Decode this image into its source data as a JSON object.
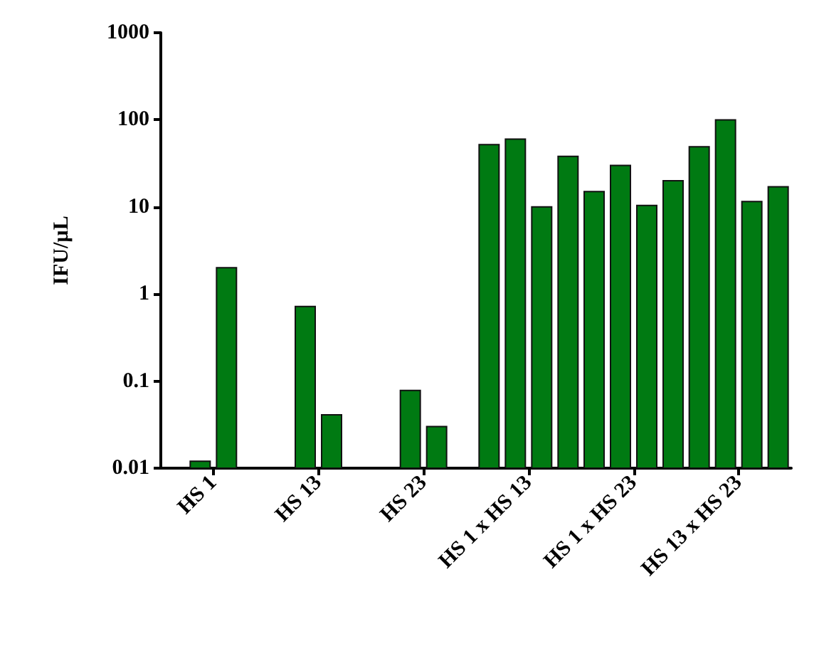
{
  "chart_data": {
    "type": "bar",
    "ylabel": "IFU/µL",
    "categories": [
      "HS 1",
      "HS 13",
      "HS 23",
      "HS 1 x HS 13",
      "HS 1 x HS 23",
      "HS 13 x HS 23"
    ],
    "series": [
      {
        "color": "#007a12",
        "values": [
          null,
          null,
          null,
          52,
          15,
          49
        ]
      },
      {
        "color": "#007a12",
        "values": [
          0.012,
          0.72,
          0.078,
          60,
          30,
          100
        ]
      },
      {
        "color": "#007a12",
        "values": [
          2,
          0.041,
          0.03,
          10,
          10.4,
          11.5
        ]
      },
      {
        "color": "#007a12",
        "values": [
          null,
          null,
          null,
          38,
          20,
          17
        ]
      }
    ],
    "log": "y",
    "ylim": [
      0.01,
      1000
    ],
    "yticks": [
      0.01,
      0.1,
      1,
      10,
      100,
      1000
    ],
    "grid": false
  }
}
